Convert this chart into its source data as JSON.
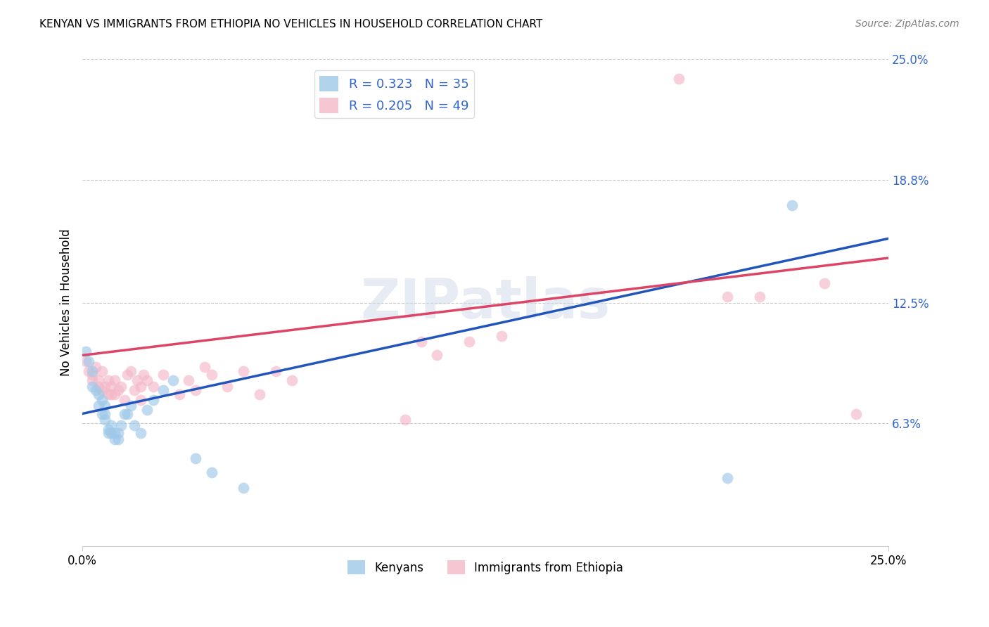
{
  "title": "KENYAN VS IMMIGRANTS FROM ETHIOPIA NO VEHICLES IN HOUSEHOLD CORRELATION CHART",
  "source": "Source: ZipAtlas.com",
  "ylabel": "No Vehicles in Household",
  "xlim": [
    0,
    0.25
  ],
  "ylim": [
    0,
    0.25
  ],
  "xtick_labels": [
    "0.0%",
    "25.0%"
  ],
  "xtick_positions": [
    0.0,
    0.25
  ],
  "ytick_labels": [
    "6.3%",
    "12.5%",
    "18.8%",
    "25.0%"
  ],
  "ytick_positions": [
    0.063,
    0.125,
    0.188,
    0.25
  ],
  "bottom_legend": [
    "Kenyans",
    "Immigrants from Ethiopia"
  ],
  "blue_color": "#9ec8e8",
  "pink_color": "#f4b8c8",
  "line_blue": "#2255bb",
  "line_pink": "#dd4466",
  "blue_scatter_x": [
    0.001,
    0.002,
    0.003,
    0.003,
    0.004,
    0.005,
    0.005,
    0.006,
    0.006,
    0.007,
    0.007,
    0.007,
    0.008,
    0.008,
    0.009,
    0.009,
    0.01,
    0.01,
    0.011,
    0.011,
    0.012,
    0.013,
    0.014,
    0.015,
    0.016,
    0.018,
    0.02,
    0.022,
    0.025,
    0.028,
    0.035,
    0.04,
    0.05,
    0.2,
    0.22
  ],
  "blue_scatter_y": [
    0.1,
    0.095,
    0.09,
    0.082,
    0.08,
    0.078,
    0.072,
    0.068,
    0.075,
    0.068,
    0.072,
    0.065,
    0.06,
    0.058,
    0.058,
    0.062,
    0.058,
    0.055,
    0.055,
    0.058,
    0.062,
    0.068,
    0.068,
    0.072,
    0.062,
    0.058,
    0.07,
    0.075,
    0.08,
    0.085,
    0.045,
    0.038,
    0.03,
    0.035,
    0.175
  ],
  "pink_scatter_x": [
    0.001,
    0.002,
    0.003,
    0.003,
    0.004,
    0.005,
    0.005,
    0.006,
    0.006,
    0.007,
    0.008,
    0.008,
    0.009,
    0.009,
    0.01,
    0.01,
    0.011,
    0.012,
    0.013,
    0.014,
    0.015,
    0.016,
    0.017,
    0.018,
    0.018,
    0.019,
    0.02,
    0.022,
    0.025,
    0.03,
    0.033,
    0.035,
    0.038,
    0.04,
    0.045,
    0.05,
    0.055,
    0.06,
    0.065,
    0.1,
    0.105,
    0.11,
    0.12,
    0.13,
    0.185,
    0.2,
    0.21,
    0.23,
    0.24
  ],
  "pink_scatter_y": [
    0.095,
    0.09,
    0.085,
    0.088,
    0.092,
    0.082,
    0.085,
    0.08,
    0.09,
    0.082,
    0.078,
    0.085,
    0.078,
    0.082,
    0.085,
    0.078,
    0.08,
    0.082,
    0.075,
    0.088,
    0.09,
    0.08,
    0.085,
    0.075,
    0.082,
    0.088,
    0.085,
    0.082,
    0.088,
    0.078,
    0.085,
    0.08,
    0.092,
    0.088,
    0.082,
    0.09,
    0.078,
    0.09,
    0.085,
    0.065,
    0.105,
    0.098,
    0.105,
    0.108,
    0.24,
    0.128,
    0.128,
    0.135,
    0.068
  ],
  "blue_R": 0.323,
  "blue_N": 35,
  "pink_R": 0.205,
  "pink_N": 49,
  "blue_line_x0": 0.0,
  "blue_line_y0": 0.068,
  "blue_line_x1": 0.25,
  "blue_line_y1": 0.158,
  "pink_line_x0": 0.0,
  "pink_line_y0": 0.098,
  "pink_line_x1": 0.25,
  "pink_line_y1": 0.148,
  "watermark": "ZIPatlas",
  "background_color": "#ffffff",
  "grid_color": "#cccccc",
  "marker_size": 130
}
